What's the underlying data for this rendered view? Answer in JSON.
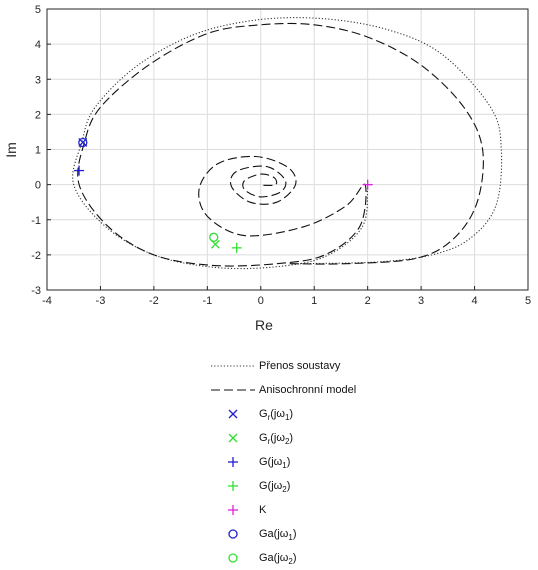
{
  "chart_data": {
    "type": "line",
    "xlabel": "Re",
    "ylabel": "Im",
    "xlim": [
      -4,
      5
    ],
    "ylim": [
      -3,
      5
    ],
    "xticks": [
      -4,
      -3,
      -2,
      -1,
      0,
      1,
      2,
      3,
      4,
      5
    ],
    "yticks": [
      -3,
      -2,
      -1,
      0,
      1,
      2,
      3,
      4,
      5
    ],
    "grid": "on",
    "series": [
      {
        "name": "Přenos soustavy",
        "style": "dotted",
        "color": "#333333",
        "points": [
          [
            2.0,
            0.0
          ],
          [
            1.9,
            -1.2
          ],
          [
            1.2,
            -2.05
          ],
          [
            0.2,
            -2.35
          ],
          [
            -0.9,
            -2.35
          ],
          [
            -2.0,
            -2.0
          ],
          [
            -2.9,
            -1.2
          ],
          [
            -3.5,
            0.0
          ],
          [
            -3.35,
            1.2
          ],
          [
            -3.1,
            2.2
          ],
          [
            -2.3,
            3.4
          ],
          [
            -1.2,
            4.3
          ],
          [
            0.0,
            4.7
          ],
          [
            1.2,
            4.72
          ],
          [
            2.4,
            4.4
          ],
          [
            3.4,
            3.7
          ],
          [
            4.3,
            2.2
          ],
          [
            4.5,
            1.0
          ],
          [
            4.4,
            -0.6
          ],
          [
            3.9,
            -1.55
          ],
          [
            3.2,
            -2.0
          ],
          [
            2.2,
            -2.2
          ],
          [
            0.7,
            -2.25
          ]
        ]
      },
      {
        "name": "Anisochronní model",
        "style": "dashed",
        "color": "#111111",
        "points": [
          [
            0.05,
            -0.02
          ],
          [
            0.28,
            0.0
          ],
          [
            0.25,
            0.2
          ],
          [
            0.0,
            0.3
          ],
          [
            -0.3,
            0.12
          ],
          [
            -0.3,
            -0.15
          ],
          [
            0.0,
            -0.35
          ],
          [
            0.38,
            -0.2
          ],
          [
            0.45,
            0.15
          ],
          [
            0.1,
            0.52
          ],
          [
            -0.45,
            0.38
          ],
          [
            -0.55,
            -0.05
          ],
          [
            -0.2,
            -0.5
          ],
          [
            0.3,
            -0.5
          ],
          [
            0.65,
            0.0
          ],
          [
            0.5,
            0.5
          ],
          [
            -0.1,
            0.8
          ],
          [
            -0.8,
            0.6
          ],
          [
            -1.15,
            -0.1
          ],
          [
            -1.0,
            -0.9
          ],
          [
            -0.3,
            -1.45
          ],
          [
            0.8,
            -1.2
          ],
          [
            1.6,
            -0.6
          ],
          [
            1.95,
            0.0
          ],
          [
            1.85,
            -1.2
          ],
          [
            1.2,
            -2.0
          ],
          [
            0.3,
            -2.25
          ],
          [
            -0.9,
            -2.3
          ],
          [
            -2.0,
            -2.0
          ],
          [
            -2.85,
            -1.2
          ],
          [
            -3.4,
            0.0
          ],
          [
            -3.3,
            1.2
          ],
          [
            -3.0,
            2.2
          ],
          [
            -2.1,
            3.4
          ],
          [
            -1.0,
            4.3
          ],
          [
            0.0,
            4.55
          ],
          [
            1.0,
            4.55
          ],
          [
            2.0,
            4.2
          ],
          [
            3.0,
            3.4
          ],
          [
            3.8,
            2.2
          ],
          [
            4.15,
            1.0
          ],
          [
            4.05,
            -0.5
          ],
          [
            3.6,
            -1.55
          ],
          [
            2.9,
            -2.1
          ],
          [
            1.6,
            -2.25
          ],
          [
            0.5,
            -2.25
          ]
        ]
      }
    ],
    "markers": [
      {
        "name": "Gr(jω1)",
        "shape": "x",
        "color": "#2020d0",
        "x": -3.33,
        "y": 1.2
      },
      {
        "name": "Gr(jω2)",
        "shape": "x",
        "color": "#30e030",
        "x": -0.85,
        "y": -1.7
      },
      {
        "name": "G(jω1)",
        "shape": "plus",
        "color": "#2020d0",
        "x": -3.4,
        "y": 0.4
      },
      {
        "name": "G(jω2)",
        "shape": "plus",
        "color": "#30e030",
        "x": -0.45,
        "y": -1.8
      },
      {
        "name": "K",
        "shape": "plus",
        "color": "#e020e0",
        "x": 2.0,
        "y": 0.0
      },
      {
        "name": "Ga(jω1)",
        "shape": "circle",
        "color": "#2020d0",
        "x": -3.33,
        "y": 1.2
      },
      {
        "name": "Ga(jω2)",
        "shape": "circle",
        "color": "#30e030",
        "x": -0.88,
        "y": -1.5
      }
    ]
  },
  "legend": {
    "items": [
      {
        "base": "Přenos soustavy",
        "sub": "",
        "tail": "",
        "kind": "dotted",
        "color": "#333333"
      },
      {
        "base": "Anisochronní model",
        "sub": "",
        "tail": "",
        "kind": "dashed",
        "color": "#111111"
      },
      {
        "base": "G",
        "sub": "r",
        "mid": "(jω",
        "sub2": "1",
        "tail": ")",
        "kind": "x",
        "color": "#2020d0"
      },
      {
        "base": "G",
        "sub": "r",
        "mid": "(jω",
        "sub2": "2",
        "tail": ")",
        "kind": "x",
        "color": "#30e030"
      },
      {
        "base": "G(jω",
        "sub": "",
        "mid": "",
        "sub2": "1",
        "tail": ")",
        "kind": "plus",
        "color": "#2020d0"
      },
      {
        "base": "G(jω",
        "sub": "",
        "mid": "",
        "sub2": "2",
        "tail": ")",
        "kind": "plus",
        "color": "#30e030"
      },
      {
        "base": "K",
        "sub": "",
        "mid": "",
        "sub2": "",
        "tail": "",
        "kind": "plus",
        "color": "#e020e0"
      },
      {
        "base": "Ga(jω",
        "sub": "",
        "mid": "",
        "sub2": "1",
        "tail": ")",
        "kind": "circle",
        "color": "#2020d0"
      },
      {
        "base": "Ga(jω",
        "sub": "",
        "mid": "",
        "sub2": "2",
        "tail": ")",
        "kind": "circle",
        "color": "#30e030"
      }
    ]
  }
}
